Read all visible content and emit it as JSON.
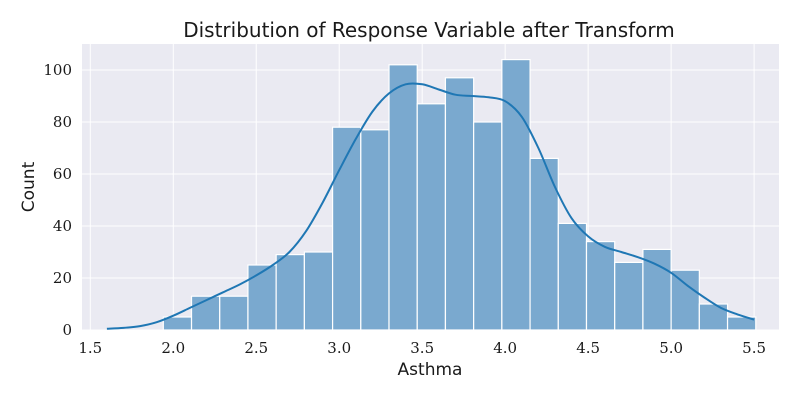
{
  "chart_data": {
    "type": "bar",
    "title": "Distribution of Response Variable after Transform",
    "xlabel": "Asthma",
    "ylabel": "Count",
    "xlim": [
      1.45,
      5.65
    ],
    "ylim": [
      0,
      110
    ],
    "xticks": [
      "1.5",
      "2.0",
      "2.5",
      "3.0",
      "3.5",
      "4.0",
      "4.5",
      "5.0",
      "5.5"
    ],
    "yticks": [
      "0",
      "20",
      "40",
      "60",
      "80",
      "100"
    ],
    "grid": true,
    "bin_edges": [
      1.94,
      2.11,
      2.28,
      2.45,
      2.62,
      2.79,
      2.96,
      3.13,
      3.3,
      3.47,
      3.64,
      3.81,
      3.98,
      4.15,
      4.32,
      4.49,
      4.66,
      4.83,
      5.0,
      5.17,
      5.34,
      5.51
    ],
    "values": [
      5,
      13,
      13,
      25,
      29,
      30,
      78,
      77,
      102,
      87,
      97,
      80,
      104,
      66,
      41,
      34,
      26,
      31,
      23,
      10,
      5
    ],
    "kde": {
      "x": [
        1.6,
        1.7,
        1.8,
        1.9,
        2.0,
        2.1,
        2.2,
        2.3,
        2.4,
        2.5,
        2.6,
        2.7,
        2.8,
        2.9,
        3.0,
        3.1,
        3.2,
        3.3,
        3.4,
        3.5,
        3.6,
        3.7,
        3.8,
        3.9,
        4.0,
        4.1,
        4.2,
        4.3,
        4.4,
        4.5,
        4.6,
        4.7,
        4.8,
        4.9,
        5.0,
        5.1,
        5.2,
        5.3,
        5.4,
        5.5
      ],
      "y": [
        0.5,
        0.8,
        1.5,
        3.0,
        5.5,
        8.5,
        11.5,
        14.5,
        17.5,
        21.0,
        25.0,
        30.0,
        38.0,
        49.0,
        61.5,
        73.5,
        84.0,
        91.0,
        94.5,
        94.5,
        92.5,
        90.5,
        90.0,
        89.5,
        88.0,
        82.0,
        70.0,
        55.0,
        43.0,
        36.0,
        32.0,
        30.0,
        28.0,
        25.5,
        22.0,
        17.0,
        12.5,
        8.5,
        6.0,
        4.0
      ]
    }
  }
}
